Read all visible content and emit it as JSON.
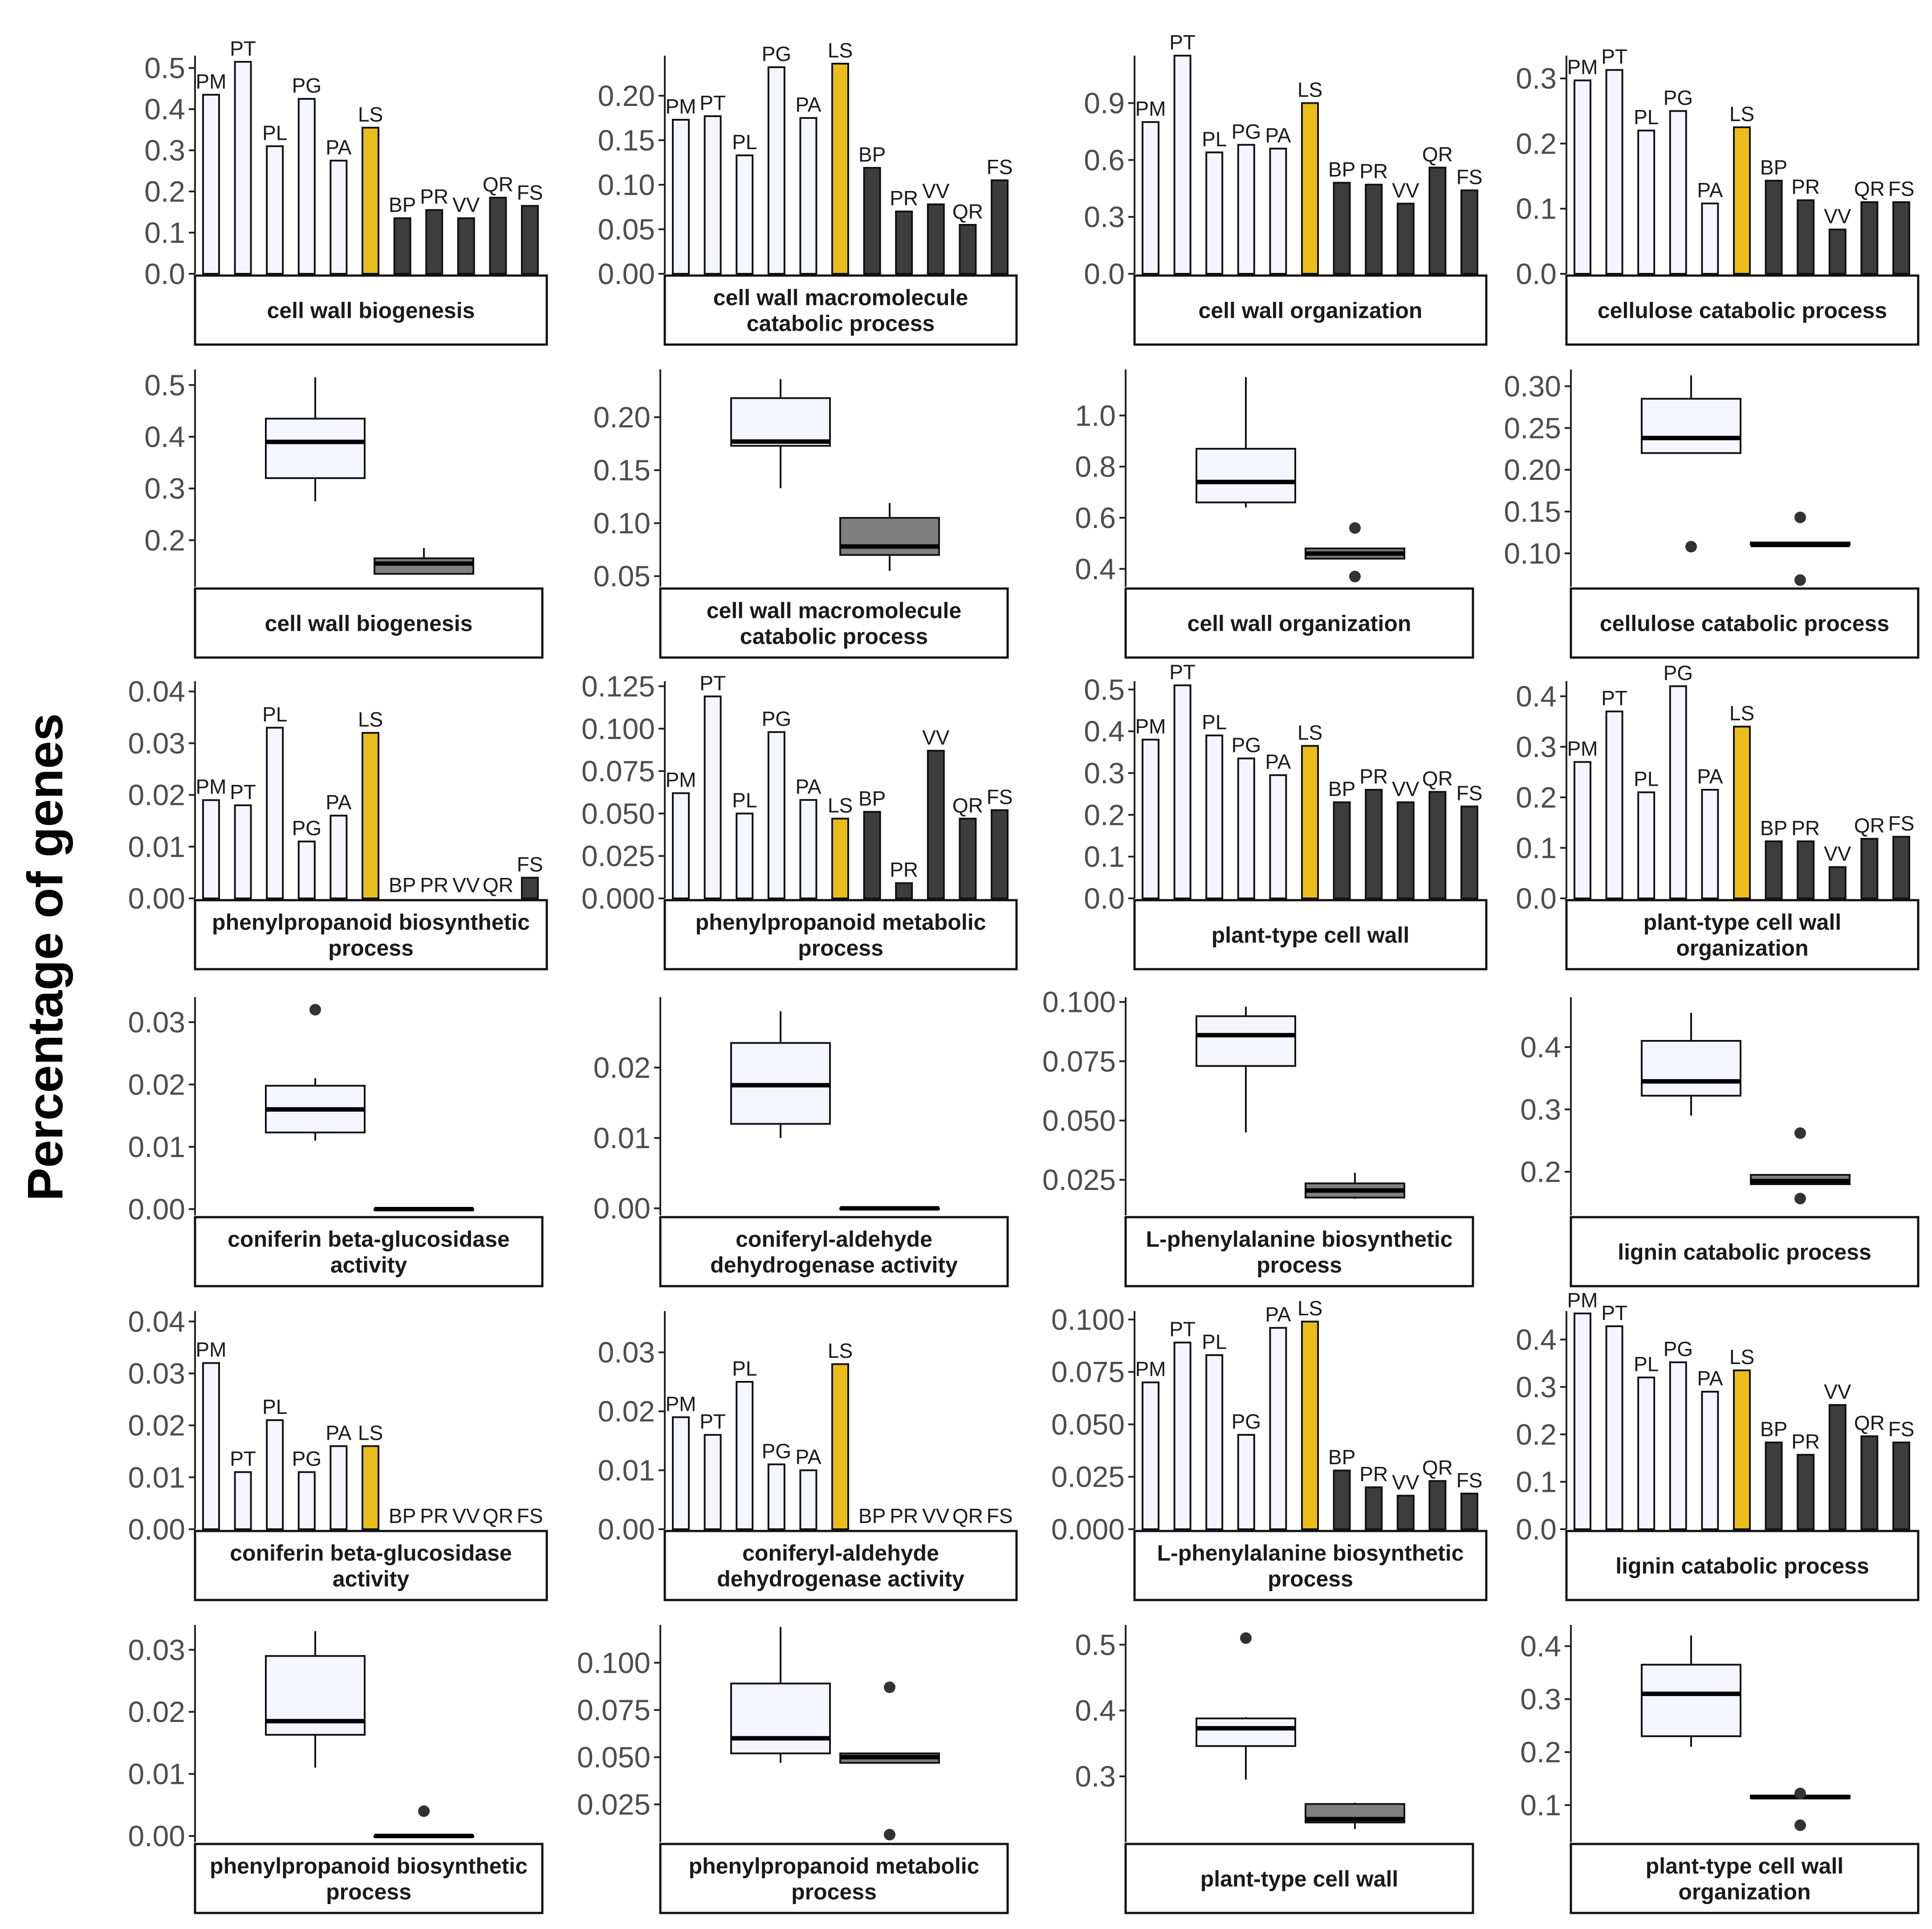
{
  "figure": {
    "y_axis_label": "Percentage of genes",
    "colors": {
      "group_a": "#f4f5ff",
      "highlight": "#ebbd1a",
      "group_b": "#3d3d3d",
      "box_b": "#7f7f7f",
      "axis": "#222222",
      "outline": "#111111"
    }
  },
  "chart_data": [
    {
      "type": "bar",
      "title": "cell wall biogenesis",
      "row": 0,
      "col": 0,
      "ylim": [
        0,
        0.53
      ],
      "yticks": [
        "0.0",
        "0.1",
        "0.2",
        "0.3",
        "0.4",
        "0.5"
      ],
      "ytick_values": [
        0,
        0.1,
        0.2,
        0.3,
        0.4,
        0.5
      ],
      "categories": [
        "PM",
        "PT",
        "PL",
        "PG",
        "PA",
        "LS",
        "BP",
        "PR",
        "VV",
        "QR",
        "FS"
      ],
      "values": [
        0.435,
        0.515,
        0.31,
        0.425,
        0.275,
        0.355,
        0.135,
        0.155,
        0.135,
        0.185,
        0.165
      ]
    },
    {
      "type": "bar",
      "title": "cell wall macromolecule catabolic process",
      "row": 0,
      "col": 1,
      "ylim": [
        0,
        0.245
      ],
      "yticks": [
        "0.00",
        "0.05",
        "0.10",
        "0.15",
        "0.20"
      ],
      "ytick_values": [
        0,
        0.05,
        0.1,
        0.15,
        0.2
      ],
      "categories": [
        "PM",
        "PT",
        "PL",
        "PG",
        "PA",
        "LS",
        "BP",
        "PR",
        "VV",
        "QR",
        "FS"
      ],
      "values": [
        0.173,
        0.177,
        0.133,
        0.232,
        0.175,
        0.236,
        0.119,
        0.07,
        0.078,
        0.055,
        0.105
      ]
    },
    {
      "type": "bar",
      "title": "cell wall organization",
      "row": 0,
      "col": 2,
      "ylim": [
        0,
        1.15
      ],
      "yticks": [
        "0.0",
        "0.3",
        "0.6",
        "0.9"
      ],
      "ytick_values": [
        0,
        0.3,
        0.6,
        0.9
      ],
      "categories": [
        "PM",
        "PT",
        "PL",
        "PG",
        "PA",
        "LS",
        "BP",
        "PR",
        "VV",
        "QR",
        "FS"
      ],
      "values": [
        0.8,
        1.15,
        0.64,
        0.68,
        0.66,
        0.9,
        0.48,
        0.47,
        0.37,
        0.56,
        0.44
      ]
    },
    {
      "type": "bar",
      "title": "cellulose catabolic process",
      "row": 0,
      "col": 3,
      "ylim": [
        0,
        0.335
      ],
      "yticks": [
        "0.0",
        "0.1",
        "0.2",
        "0.3"
      ],
      "ytick_values": [
        0,
        0.1,
        0.2,
        0.3
      ],
      "categories": [
        "PM",
        "PT",
        "PL",
        "PG",
        "PA",
        "LS",
        "BP",
        "PR",
        "VV",
        "QR",
        "FS"
      ],
      "values": [
        0.297,
        0.313,
        0.22,
        0.25,
        0.108,
        0.225,
        0.143,
        0.113,
        0.068,
        0.11,
        0.11
      ]
    },
    {
      "type": "box",
      "title": "cell wall biogenesis",
      "row": 1,
      "col": 0,
      "ylim": [
        0.11,
        0.53
      ],
      "yticks": [
        "0.2",
        "0.3",
        "0.4",
        "0.5"
      ],
      "ytick_values": [
        0.2,
        0.3,
        0.4,
        0.5
      ],
      "boxes": [
        {
          "min": 0.275,
          "q1": 0.32,
          "median": 0.39,
          "q3": 0.435,
          "max": 0.515,
          "outliers": []
        },
        {
          "min": 0.135,
          "q1": 0.135,
          "median": 0.155,
          "q3": 0.165,
          "max": 0.185,
          "outliers": []
        }
      ]
    },
    {
      "type": "box",
      "title": "cell wall macromolecule catabolic process",
      "row": 1,
      "col": 1,
      "ylim": [
        0.04,
        0.245
      ],
      "yticks": [
        "0.05",
        "0.10",
        "0.15",
        "0.20"
      ],
      "ytick_values": [
        0.05,
        0.1,
        0.15,
        0.2
      ],
      "boxes": [
        {
          "min": 0.133,
          "q1": 0.173,
          "median": 0.177,
          "q3": 0.218,
          "max": 0.236,
          "outliers": []
        },
        {
          "min": 0.055,
          "q1": 0.07,
          "median": 0.078,
          "q3": 0.105,
          "max": 0.119,
          "outliers": []
        }
      ]
    },
    {
      "type": "box",
      "title": "cell wall organization",
      "row": 1,
      "col": 2,
      "ylim": [
        0.33,
        1.18
      ],
      "yticks": [
        "0.4",
        "0.6",
        "0.8",
        "1.0"
      ],
      "ytick_values": [
        0.4,
        0.6,
        0.8,
        1.0
      ],
      "boxes": [
        {
          "min": 0.64,
          "q1": 0.66,
          "median": 0.74,
          "q3": 0.87,
          "max": 1.15,
          "outliers": []
        },
        {
          "min": 0.44,
          "q1": 0.44,
          "median": 0.46,
          "q3": 0.48,
          "max": 0.48,
          "outliers": [
            0.56,
            0.37
          ]
        }
      ]
    },
    {
      "type": "box",
      "title": "cellulose catabolic process",
      "row": 1,
      "col": 3,
      "ylim": [
        0.06,
        0.32
      ],
      "yticks": [
        "0.10",
        "0.15",
        "0.20",
        "0.25",
        "0.30"
      ],
      "ytick_values": [
        0.1,
        0.15,
        0.2,
        0.25,
        0.3
      ],
      "boxes": [
        {
          "min": 0.22,
          "q1": 0.22,
          "median": 0.238,
          "q3": 0.285,
          "max": 0.313,
          "outliers": [
            0.108
          ]
        },
        {
          "min": 0.11,
          "q1": 0.11,
          "median": 0.11,
          "q3": 0.113,
          "max": 0.113,
          "outliers": [
            0.143,
            0.068
          ]
        }
      ]
    },
    {
      "type": "bar",
      "title": "phenylpropanoid biosynthetic process",
      "row": 2,
      "col": 0,
      "ylim": [
        0,
        0.042
      ],
      "yticks": [
        "0.00",
        "0.01",
        "0.02",
        "0.03",
        "0.04"
      ],
      "ytick_values": [
        0,
        0.01,
        0.02,
        0.03,
        0.04
      ],
      "categories": [
        "PM",
        "PT",
        "PL",
        "PG",
        "PA",
        "LS",
        "BP",
        "PR",
        "VV",
        "QR",
        "FS"
      ],
      "values": [
        0.019,
        0.018,
        0.033,
        0.011,
        0.016,
        0.032,
        0,
        0,
        0,
        0,
        0.004
      ]
    },
    {
      "type": "bar",
      "title": "phenylpropanoid metabolic process",
      "row": 2,
      "col": 1,
      "ylim": [
        0,
        0.128
      ],
      "yticks": [
        "0.000",
        "0.025",
        "0.050",
        "0.075",
        "0.100",
        "0.125"
      ],
      "ytick_values": [
        0,
        0.025,
        0.05,
        0.075,
        0.1,
        0.125
      ],
      "categories": [
        "PM",
        "PT",
        "PL",
        "PG",
        "PA",
        "LS",
        "BP",
        "PR",
        "VV",
        "QR",
        "FS"
      ],
      "values": [
        0.062,
        0.119,
        0.05,
        0.098,
        0.058,
        0.047,
        0.051,
        0.009,
        0.087,
        0.047,
        0.052
      ]
    },
    {
      "type": "bar",
      "title": "plant-type cell wall",
      "row": 2,
      "col": 2,
      "ylim": [
        0,
        0.52
      ],
      "yticks": [
        "0.0",
        "0.1",
        "0.2",
        "0.3",
        "0.4",
        "0.5"
      ],
      "ytick_values": [
        0,
        0.1,
        0.2,
        0.3,
        0.4,
        0.5
      ],
      "categories": [
        "PM",
        "PT",
        "PL",
        "PG",
        "PA",
        "LS",
        "BP",
        "PR",
        "VV",
        "QR",
        "FS"
      ],
      "values": [
        0.38,
        0.51,
        0.39,
        0.335,
        0.295,
        0.365,
        0.23,
        0.26,
        0.23,
        0.255,
        0.22
      ]
    },
    {
      "type": "bar",
      "title": "plant-type cell wall organization",
      "row": 2,
      "col": 3,
      "ylim": [
        0,
        0.43
      ],
      "yticks": [
        "0.0",
        "0.1",
        "0.2",
        "0.3",
        "0.4"
      ],
      "ytick_values": [
        0,
        0.1,
        0.2,
        0.3,
        0.4
      ],
      "categories": [
        "PM",
        "PT",
        "PL",
        "PG",
        "PA",
        "LS",
        "BP",
        "PR",
        "VV",
        "QR",
        "FS"
      ],
      "values": [
        0.27,
        0.37,
        0.21,
        0.42,
        0.215,
        0.34,
        0.113,
        0.113,
        0.062,
        0.118,
        0.122
      ]
    },
    {
      "type": "box",
      "title": "coniferin beta-glucosidase activity",
      "row": 3,
      "col": 0,
      "ylim": [
        -0.001,
        0.034
      ],
      "yticks": [
        "0.00",
        "0.01",
        "0.02",
        "0.03"
      ],
      "ytick_values": [
        0,
        0.01,
        0.02,
        0.03
      ],
      "boxes": [
        {
          "min": 0.011,
          "q1": 0.0123,
          "median": 0.016,
          "q3": 0.0198,
          "max": 0.021,
          "outliers": [
            0.032
          ]
        },
        {
          "min": 0,
          "q1": 0,
          "median": 0,
          "q3": 0,
          "max": 0,
          "outliers": []
        }
      ]
    },
    {
      "type": "box",
      "title": "coniferyl-aldehyde dehydrogenase activity",
      "row": 3,
      "col": 1,
      "ylim": [
        -0.001,
        0.03
      ],
      "yticks": [
        "0.00",
        "0.01",
        "0.02"
      ],
      "ytick_values": [
        0,
        0.01,
        0.02
      ],
      "boxes": [
        {
          "min": 0.01,
          "q1": 0.012,
          "median": 0.0175,
          "q3": 0.0235,
          "max": 0.028,
          "outliers": []
        },
        {
          "min": 0,
          "q1": 0,
          "median": 0,
          "q3": 0,
          "max": 0,
          "outliers": []
        }
      ]
    },
    {
      "type": "box",
      "title": "L-phenylalanine biosynthetic process",
      "row": 3,
      "col": 2,
      "ylim": [
        0.01,
        0.102
      ],
      "yticks": [
        "0.025",
        "0.050",
        "0.075",
        "0.100"
      ],
      "ytick_values": [
        0.025,
        0.05,
        0.075,
        0.1
      ],
      "boxes": [
        {
          "min": 0.045,
          "q1": 0.073,
          "median": 0.086,
          "q3": 0.094,
          "max": 0.098,
          "outliers": []
        },
        {
          "min": 0.017,
          "q1": 0.0175,
          "median": 0.0205,
          "q3": 0.0235,
          "max": 0.028,
          "outliers": []
        }
      ]
    },
    {
      "type": "box",
      "title": "lignin catabolic process",
      "row": 3,
      "col": 3,
      "ylim": [
        0.13,
        0.48
      ],
      "yticks": [
        "0.2",
        "0.3",
        "0.4"
      ],
      "ytick_values": [
        0.2,
        0.3,
        0.4
      ],
      "boxes": [
        {
          "min": 0.29,
          "q1": 0.322,
          "median": 0.345,
          "q3": 0.41,
          "max": 0.455,
          "outliers": []
        },
        {
          "min": 0.18,
          "q1": 0.18,
          "median": 0.185,
          "q3": 0.195,
          "max": 0.195,
          "outliers": [
            0.262,
            0.157
          ]
        }
      ]
    },
    {
      "type": "bar",
      "title": "coniferin beta-glucosidase activity",
      "row": 4,
      "col": 0,
      "ylim": [
        0,
        0.042
      ],
      "yticks": [
        "0.00",
        "0.01",
        "0.02",
        "0.03",
        "0.04"
      ],
      "ytick_values": [
        0,
        0.01,
        0.02,
        0.03,
        0.04
      ],
      "categories": [
        "PM",
        "PT",
        "PL",
        "PG",
        "PA",
        "LS",
        "BP",
        "PR",
        "VV",
        "QR",
        "FS"
      ],
      "values": [
        0.032,
        0.011,
        0.021,
        0.011,
        0.016,
        0.016,
        0,
        0,
        0,
        0,
        0
      ]
    },
    {
      "type": "bar",
      "title": "coniferyl-aldehyde dehydrogenase activity",
      "row": 4,
      "col": 1,
      "ylim": [
        0,
        0.037
      ],
      "yticks": [
        "0.00",
        "0.01",
        "0.02",
        "0.03"
      ],
      "ytick_values": [
        0,
        0.01,
        0.02,
        0.03
      ],
      "categories": [
        "PM",
        "PT",
        "PL",
        "PG",
        "PA",
        "LS",
        "BP",
        "PR",
        "VV",
        "QR",
        "FS"
      ],
      "values": [
        0.019,
        0.016,
        0.025,
        0.011,
        0.01,
        0.028,
        0,
        0,
        0,
        0,
        0
      ]
    },
    {
      "type": "bar",
      "title": "L-phenylalanine biosynthetic process",
      "row": 4,
      "col": 2,
      "ylim": [
        0,
        0.104
      ],
      "yticks": [
        "0.000",
        "0.025",
        "0.050",
        "0.075",
        "0.100"
      ],
      "ytick_values": [
        0,
        0.025,
        0.05,
        0.075,
        0.1
      ],
      "categories": [
        "PM",
        "PT",
        "PL",
        "PG",
        "PA",
        "LS",
        "BP",
        "PR",
        "VV",
        "QR",
        "FS"
      ],
      "values": [
        0.07,
        0.089,
        0.083,
        0.045,
        0.096,
        0.099,
        0.028,
        0.02,
        0.016,
        0.023,
        0.017
      ]
    },
    {
      "type": "bar",
      "title": "lignin catabolic process",
      "row": 4,
      "col": 3,
      "ylim": [
        0,
        0.46
      ],
      "yticks": [
        "0.0",
        "0.1",
        "0.2",
        "0.3",
        "0.4"
      ],
      "ytick_values": [
        0,
        0.1,
        0.2,
        0.3,
        0.4
      ],
      "categories": [
        "PM",
        "PT",
        "PL",
        "PG",
        "PA",
        "LS",
        "BP",
        "PR",
        "VV",
        "QR",
        "FS"
      ],
      "values": [
        0.455,
        0.428,
        0.32,
        0.352,
        0.29,
        0.335,
        0.183,
        0.157,
        0.262,
        0.196,
        0.183
      ]
    },
    {
      "type": "box",
      "title": "phenylpropanoid biosynthetic process",
      "row": 5,
      "col": 0,
      "ylim": [
        -0.001,
        0.034
      ],
      "yticks": [
        "0.00",
        "0.01",
        "0.02",
        "0.03"
      ],
      "ytick_values": [
        0,
        0.01,
        0.02,
        0.03
      ],
      "boxes": [
        {
          "min": 0.011,
          "q1": 0.0163,
          "median": 0.0185,
          "q3": 0.029,
          "max": 0.033,
          "outliers": []
        },
        {
          "min": 0,
          "q1": 0,
          "median": 0,
          "q3": 0,
          "max": 0,
          "outliers": [
            0.004
          ]
        }
      ]
    },
    {
      "type": "box",
      "title": "phenylpropanoid metabolic process",
      "row": 5,
      "col": 1,
      "ylim": [
        0.005,
        0.12
      ],
      "yticks": [
        "0.025",
        "0.050",
        "0.075",
        "0.100"
      ],
      "ytick_values": [
        0.025,
        0.05,
        0.075,
        0.1
      ],
      "boxes": [
        {
          "min": 0.047,
          "q1": 0.052,
          "median": 0.06,
          "q3": 0.089,
          "max": 0.119,
          "outliers": []
        },
        {
          "min": 0.047,
          "q1": 0.047,
          "median": 0.05,
          "q3": 0.052,
          "max": 0.052,
          "outliers": [
            0.087,
            0.009
          ]
        }
      ]
    },
    {
      "type": "box",
      "title": "plant-type cell wall",
      "row": 5,
      "col": 2,
      "ylim": [
        0.2,
        0.53
      ],
      "yticks": [
        "0.3",
        "0.4",
        "0.5"
      ],
      "ytick_values": [
        0.3,
        0.4,
        0.5
      ],
      "boxes": [
        {
          "min": 0.295,
          "q1": 0.346,
          "median": 0.373,
          "q3": 0.388,
          "max": 0.39,
          "outliers": [
            0.51
          ]
        },
        {
          "min": 0.22,
          "q1": 0.23,
          "median": 0.235,
          "q3": 0.258,
          "max": 0.26,
          "outliers": []
        }
      ]
    },
    {
      "type": "box",
      "title": "plant-type cell wall organization",
      "row": 5,
      "col": 3,
      "ylim": [
        0.03,
        0.44
      ],
      "yticks": [
        "0.1",
        "0.2",
        "0.3",
        "0.4"
      ],
      "ytick_values": [
        0.1,
        0.2,
        0.3,
        0.4
      ],
      "boxes": [
        {
          "min": 0.21,
          "q1": 0.23,
          "median": 0.31,
          "q3": 0.365,
          "max": 0.42,
          "outliers": []
        },
        {
          "min": 0.113,
          "q1": 0.113,
          "median": 0.115,
          "q3": 0.118,
          "max": 0.118,
          "outliers": [
            0.122,
            0.062
          ]
        }
      ]
    }
  ]
}
